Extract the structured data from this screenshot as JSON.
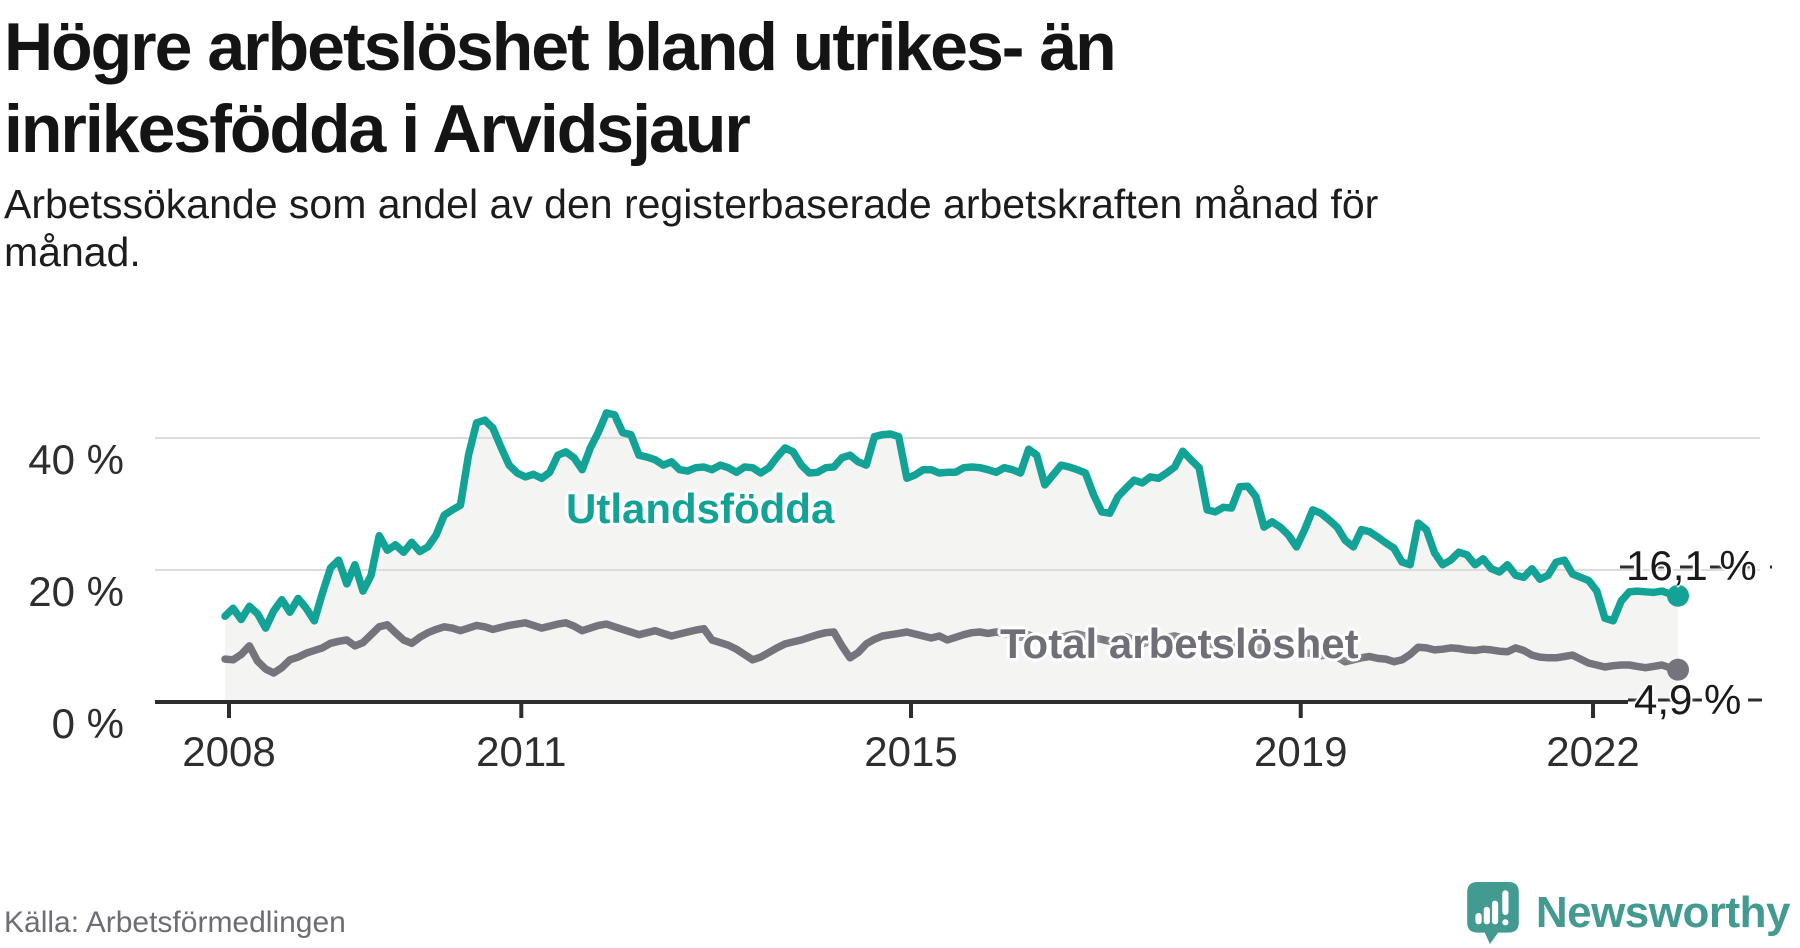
{
  "title": {
    "line1": "Högre arbetslöshet bland utrikes- än",
    "line2": "inrikesfödda i Arvidsjaur"
  },
  "subtitle": {
    "line1": "Arbetssökande som andel av den registerbaserade arbetskraften månad för",
    "line2": "månad."
  },
  "source": "Källa: Arbetsförmedlingen",
  "brand": {
    "name": "Newsworthy",
    "color": "#429a90",
    "icon": "newsworthy-speech-bubble-chart-icon"
  },
  "colors": {
    "title_text": "#141414",
    "axis_text": "#2e2e2e",
    "axis_line": "#2d2d2d",
    "grid_line": "#dcdcdc",
    "area_fill": "#f4f4f2",
    "foreign_born": "#12a296",
    "total": "#74747c",
    "total_label": "#6f6f78",
    "end_label_text": "#1a1a1a"
  },
  "chart_data": {
    "type": "line",
    "frequency": "monthly",
    "x_start": "2008-01",
    "x_end": "2022-12",
    "x_ticks": [
      "2008",
      "2011",
      "2015",
      "2019",
      "2022"
    ],
    "y_ticks": [
      "0 %",
      "20 %",
      "40 %"
    ],
    "ylim": [
      0,
      46
    ],
    "grid": "horizontal",
    "legend_position": "inline-on-lines",
    "series": [
      {
        "name": "Utlandsfödda",
        "color": "#12a296",
        "end_label": "16,1 %",
        "end_value": 16.1,
        "area_fill": "#f4f4f2",
        "values": [
          13.0,
          14.2,
          12.5,
          14.5,
          13.4,
          11.2,
          13.8,
          15.5,
          13.6,
          15.7,
          14.2,
          12.3,
          16.5,
          20.3,
          21.5,
          17.9,
          20.8,
          16.8,
          19.2,
          25.2,
          23.0,
          23.8,
          22.7,
          24.2,
          22.8,
          23.5,
          25.3,
          28.3,
          29.1,
          29.8,
          37.4,
          42.3,
          42.7,
          41.5,
          38.6,
          35.9,
          34.7,
          34.1,
          34.5,
          33.9,
          34.8,
          37.4,
          37.9,
          37.0,
          35.2,
          38.5,
          40.9,
          43.8,
          43.5,
          40.8,
          40.5,
          37.4,
          37.1,
          36.7,
          35.9,
          36.4,
          35.2,
          35.0,
          35.5,
          35.6,
          35.2,
          35.9,
          35.5,
          34.8,
          35.6,
          35.5,
          34.7,
          35.5,
          37.1,
          38.5,
          37.9,
          35.9,
          34.7,
          34.8,
          35.5,
          35.6,
          37.0,
          37.4,
          36.4,
          35.9,
          40.2,
          40.5,
          40.6,
          40.2,
          33.9,
          34.4,
          35.2,
          35.2,
          34.7,
          34.8,
          34.8,
          35.5,
          35.6,
          35.5,
          35.2,
          34.8,
          35.5,
          35.2,
          34.7,
          38.3,
          37.4,
          32.9,
          34.4,
          35.9,
          35.6,
          35.2,
          34.7,
          31.4,
          28.8,
          28.6,
          31.1,
          32.4,
          33.6,
          33.2,
          34.1,
          33.9,
          34.7,
          35.6,
          38.0,
          36.7,
          35.5,
          29.1,
          28.8,
          29.5,
          29.4,
          32.6,
          32.7,
          31.1,
          26.5,
          27.3,
          26.5,
          25.3,
          23.5,
          26.1,
          29.1,
          28.6,
          27.6,
          26.5,
          24.5,
          23.5,
          26.1,
          25.8,
          25.0,
          24.1,
          23.3,
          21.2,
          20.8,
          27.1,
          26.1,
          22.6,
          20.8,
          21.5,
          22.7,
          22.3,
          20.8,
          21.7,
          20.2,
          19.7,
          20.8,
          19.2,
          18.9,
          20.2,
          18.6,
          19.2,
          21.2,
          21.5,
          19.4,
          18.9,
          18.4,
          16.8,
          12.7,
          12.3,
          15.3,
          16.7,
          16.8,
          16.7,
          16.6,
          16.8,
          16.4,
          16.1
        ]
      },
      {
        "name": "Total arbetslöshet",
        "color": "#74747c",
        "end_label": "4,9 %",
        "end_value": 4.9,
        "values": [
          6.5,
          6.4,
          7.2,
          8.5,
          6.2,
          5.0,
          4.4,
          5.2,
          6.4,
          6.8,
          7.4,
          7.8,
          8.2,
          8.9,
          9.2,
          9.4,
          8.5,
          9.0,
          10.2,
          11.4,
          11.7,
          10.5,
          9.4,
          8.9,
          9.8,
          10.5,
          11.0,
          11.4,
          11.2,
          10.8,
          11.2,
          11.6,
          11.4,
          11.0,
          11.3,
          11.6,
          11.8,
          12.0,
          11.6,
          11.2,
          11.5,
          11.8,
          12.0,
          11.5,
          10.8,
          11.2,
          11.6,
          11.8,
          11.4,
          11.0,
          10.6,
          10.2,
          10.5,
          10.8,
          10.4,
          10.0,
          10.3,
          10.6,
          10.9,
          11.1,
          9.4,
          9.0,
          8.6,
          8.0,
          7.2,
          6.4,
          6.8,
          7.5,
          8.2,
          8.8,
          9.1,
          9.4,
          9.8,
          10.2,
          10.5,
          10.6,
          8.5,
          6.7,
          7.5,
          8.8,
          9.5,
          10.0,
          10.2,
          10.4,
          10.6,
          10.3,
          10.0,
          9.7,
          10.0,
          9.4,
          9.8,
          10.2,
          10.5,
          10.6,
          10.4,
          10.6,
          10.4,
          10.1,
          9.8,
          10.2,
          9.6,
          9.0,
          9.4,
          9.8,
          10.1,
          10.3,
          10.0,
          9.7,
          9.5,
          9.2,
          9.6,
          9.9,
          9.4,
          8.8,
          9.2,
          9.6,
          9.8,
          10.0,
          9.7,
          9.4,
          9.2,
          8.9,
          8.6,
          8.4,
          8.7,
          8.2,
          7.8,
          8.1,
          8.4,
          8.6,
          8.3,
          8.0,
          7.8,
          7.5,
          7.3,
          7.0,
          7.2,
          6.8,
          6.1,
          6.4,
          6.7,
          6.9,
          6.6,
          6.5,
          6.1,
          6.4,
          7.2,
          8.3,
          8.2,
          7.9,
          8.0,
          8.2,
          8.1,
          7.9,
          7.8,
          8.0,
          7.9,
          7.7,
          7.6,
          8.2,
          7.8,
          7.1,
          6.8,
          6.7,
          6.7,
          6.9,
          7.1,
          6.5,
          5.9,
          5.6,
          5.3,
          5.5,
          5.6,
          5.6,
          5.4,
          5.2,
          5.4,
          5.6,
          5.2,
          4.9
        ]
      }
    ]
  }
}
